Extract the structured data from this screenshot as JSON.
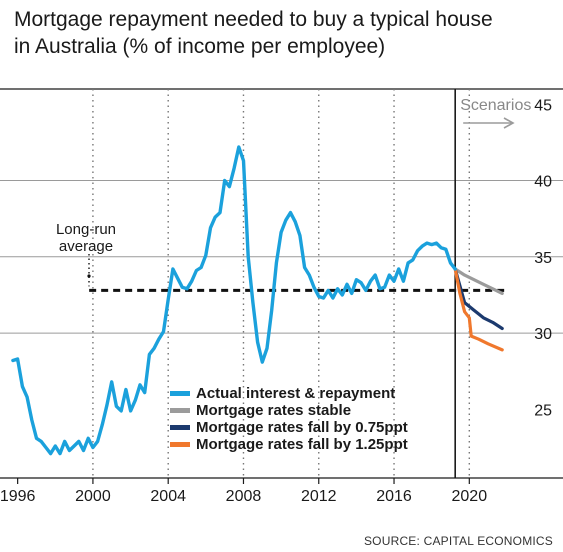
{
  "title_lines": [
    "Mortgage repayment needed to buy a typical house",
    "in Australia (% of income per employee)"
  ],
  "source": "SOURCE: CAPITAL ECONOMICS",
  "chart_data": {
    "type": "line",
    "title": "Mortgage repayment needed to buy a typical house in Australia (% of income per employee)",
    "xlim": [
      1995.7,
      2022.8
    ],
    "ylim": [
      20.5,
      46
    ],
    "x_ticks": [
      1996,
      2000,
      2004,
      2008,
      2012,
      2016,
      2020
    ],
    "y_ticks": [
      25,
      30,
      35,
      40,
      45
    ],
    "y_axis_side": "right",
    "horizontal_grid": [
      30,
      35,
      40
    ],
    "vertical_dotted_lines": [
      2000,
      2004,
      2008,
      2012,
      2016,
      2020
    ],
    "scenario_divider_x": 2019.25,
    "scenarios_label": "Scenarios",
    "long_run_average": {
      "label_lines": [
        "Long-run",
        "average"
      ],
      "value": 32.8,
      "x_range": [
        1999.8,
        2022.0
      ]
    },
    "legend_position": "bottom-center",
    "series": [
      {
        "name": "Actual interest & repayment",
        "color": "#1ba1dc",
        "points": [
          [
            1995.75,
            28.2
          ],
          [
            1996,
            28.3
          ],
          [
            1996.25,
            26.5
          ],
          [
            1996.5,
            25.8
          ],
          [
            1996.75,
            24.3
          ],
          [
            1997,
            23.1
          ],
          [
            1997.25,
            22.9
          ],
          [
            1997.5,
            22.5
          ],
          [
            1997.75,
            22.1
          ],
          [
            1998,
            22.6
          ],
          [
            1998.25,
            22.1
          ],
          [
            1998.5,
            22.9
          ],
          [
            1998.75,
            22.3
          ],
          [
            1999,
            22.6
          ],
          [
            1999.25,
            22.9
          ],
          [
            1999.5,
            22.3
          ],
          [
            1999.75,
            23.1
          ],
          [
            2000,
            22.5
          ],
          [
            2000.25,
            22.9
          ],
          [
            2000.5,
            24.0
          ],
          [
            2000.75,
            25.3
          ],
          [
            2001,
            26.8
          ],
          [
            2001.25,
            25.2
          ],
          [
            2001.5,
            24.9
          ],
          [
            2001.75,
            26.3
          ],
          [
            2002,
            24.9
          ],
          [
            2002.25,
            25.6
          ],
          [
            2002.5,
            26.6
          ],
          [
            2002.75,
            26.1
          ],
          [
            2003,
            28.6
          ],
          [
            2003.25,
            29.0
          ],
          [
            2003.5,
            29.6
          ],
          [
            2003.75,
            30.1
          ],
          [
            2004,
            32.2
          ],
          [
            2004.25,
            34.2
          ],
          [
            2004.5,
            33.6
          ],
          [
            2004.75,
            33.0
          ],
          [
            2005,
            32.9
          ],
          [
            2005.25,
            33.4
          ],
          [
            2005.5,
            34.1
          ],
          [
            2005.75,
            34.3
          ],
          [
            2006,
            35.1
          ],
          [
            2006.25,
            36.9
          ],
          [
            2006.5,
            37.6
          ],
          [
            2006.75,
            37.9
          ],
          [
            2007,
            40.0
          ],
          [
            2007.25,
            39.6
          ],
          [
            2007.5,
            40.8
          ],
          [
            2007.75,
            42.2
          ],
          [
            2008,
            41.3
          ],
          [
            2008.25,
            35.0
          ],
          [
            2008.5,
            32.0
          ],
          [
            2008.75,
            29.4
          ],
          [
            2009,
            28.1
          ],
          [
            2009.25,
            29.0
          ],
          [
            2009.5,
            31.5
          ],
          [
            2009.75,
            34.6
          ],
          [
            2010,
            36.6
          ],
          [
            2010.25,
            37.4
          ],
          [
            2010.5,
            37.9
          ],
          [
            2010.75,
            37.3
          ],
          [
            2011,
            36.4
          ],
          [
            2011.25,
            34.3
          ],
          [
            2011.5,
            33.8
          ],
          [
            2011.75,
            33.0
          ],
          [
            2012,
            32.4
          ],
          [
            2012.25,
            32.3
          ],
          [
            2012.5,
            32.8
          ],
          [
            2012.75,
            32.3
          ],
          [
            2013,
            32.9
          ],
          [
            2013.25,
            32.5
          ],
          [
            2013.5,
            33.2
          ],
          [
            2013.75,
            32.6
          ],
          [
            2014,
            33.5
          ],
          [
            2014.25,
            33.3
          ],
          [
            2014.5,
            32.8
          ],
          [
            2014.75,
            33.4
          ],
          [
            2015,
            33.8
          ],
          [
            2015.25,
            32.9
          ],
          [
            2015.5,
            33.0
          ],
          [
            2015.75,
            33.8
          ],
          [
            2016,
            33.4
          ],
          [
            2016.25,
            34.2
          ],
          [
            2016.5,
            33.4
          ],
          [
            2016.75,
            34.6
          ],
          [
            2017,
            34.8
          ],
          [
            2017.25,
            35.4
          ],
          [
            2017.5,
            35.7
          ],
          [
            2017.75,
            35.9
          ],
          [
            2018,
            35.8
          ],
          [
            2018.25,
            35.9
          ],
          [
            2018.5,
            35.6
          ],
          [
            2018.75,
            35.5
          ],
          [
            2019,
            34.6
          ],
          [
            2019.25,
            34.2
          ]
        ]
      },
      {
        "name": "Mortgage rates stable",
        "color": "#9b9b9b",
        "points": [
          [
            2019.25,
            34.2
          ],
          [
            2019.75,
            33.8
          ],
          [
            2020.25,
            33.5
          ],
          [
            2020.75,
            33.2
          ],
          [
            2021.25,
            32.9
          ],
          [
            2021.75,
            32.6
          ]
        ]
      },
      {
        "name": "Mortgage rates fall by 0.75ppt",
        "color": "#1c3a6e",
        "points": [
          [
            2019.25,
            34.2
          ],
          [
            2019.5,
            33.1
          ],
          [
            2019.75,
            32.0
          ],
          [
            2020.25,
            31.5
          ],
          [
            2020.75,
            31.0
          ],
          [
            2021.25,
            30.7
          ],
          [
            2021.75,
            30.3
          ]
        ]
      },
      {
        "name": "Mortgage rates fall by 1.25ppt",
        "color": "#f0782d",
        "points": [
          [
            2019.25,
            34.2
          ],
          [
            2019.5,
            32.6
          ],
          [
            2019.75,
            31.4
          ],
          [
            2020,
            31.0
          ],
          [
            2020.1,
            29.8
          ],
          [
            2020.5,
            29.6
          ],
          [
            2021,
            29.3
          ],
          [
            2021.75,
            28.9
          ]
        ]
      }
    ]
  }
}
